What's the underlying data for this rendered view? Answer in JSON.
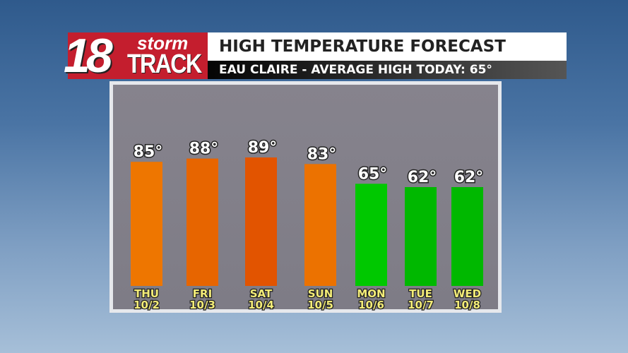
{
  "logo": {
    "number": "18",
    "word1": "storm",
    "word2": "TRACK",
    "brand_color": "#c41e2e"
  },
  "header": {
    "title": "HIGH TEMPERATURE FORECAST",
    "subtitle": "EAU CLAIRE - AVERAGE HIGH TODAY: 65°"
  },
  "chart_data": {
    "type": "bar",
    "title": "HIGH TEMPERATURE FORECAST",
    "subtitle": "EAU CLAIRE - AVERAGE HIGH TODAY: 65°",
    "categories": [
      "THU",
      "FRI",
      "SAT",
      "SUN",
      "MON",
      "TUE",
      "WED"
    ],
    "dates": [
      "10/2",
      "10/3",
      "10/4",
      "10/5",
      "10/6",
      "10/7",
      "10/8"
    ],
    "values": [
      85,
      88,
      89,
      83,
      65,
      62,
      62
    ],
    "labels": [
      "85°",
      "88°",
      "89°",
      "83°",
      "65°",
      "62°",
      "62°"
    ],
    "colors": [
      "#ee7600",
      "#e76500",
      "#e25400",
      "#ec7200",
      "#00c800",
      "#00b800",
      "#00b800"
    ],
    "unit": "°F",
    "grid": false,
    "legend": "none"
  }
}
